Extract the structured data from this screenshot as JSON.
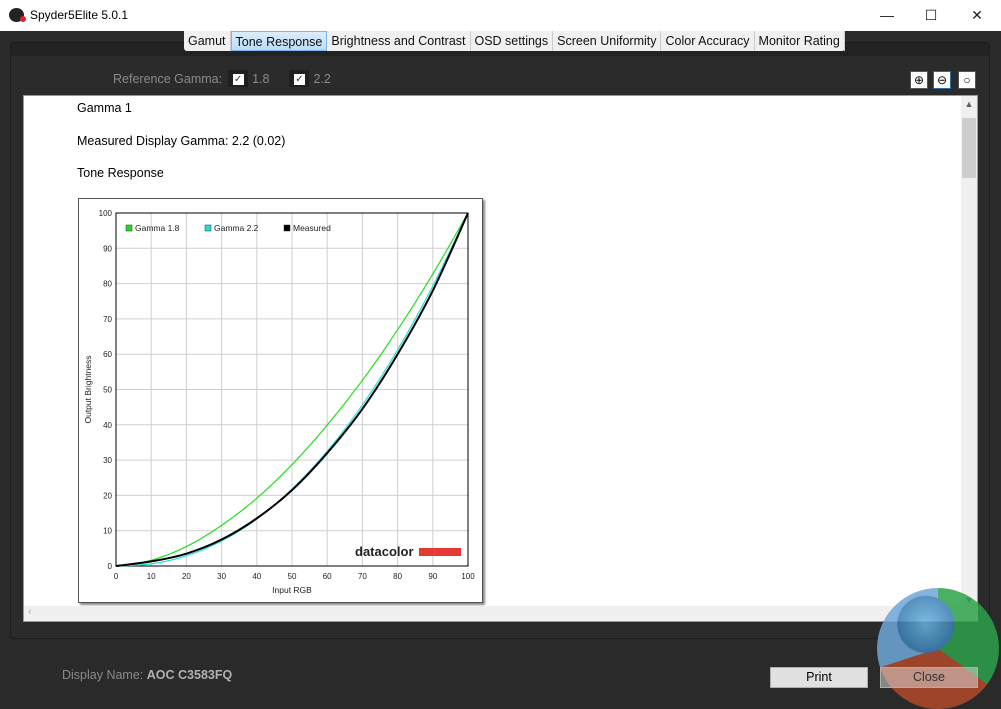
{
  "window": {
    "title": "Spyder5Elite 5.0.1",
    "logo": "S",
    "minimize": "—",
    "maximize": "☐",
    "close": "✕"
  },
  "tabs": [
    {
      "label": "Gamut"
    },
    {
      "label": "Tone Response",
      "active": true
    },
    {
      "label": "Brightness and Contrast"
    },
    {
      "label": "OSD settings"
    },
    {
      "label": "Screen Uniformity"
    },
    {
      "label": "Color Accuracy"
    },
    {
      "label": "Monitor Rating"
    }
  ],
  "reference": {
    "label": "Reference Gamma:",
    "options": [
      {
        "value": "1.8",
        "checked": true
      },
      {
        "value": "2.2",
        "checked": true
      }
    ]
  },
  "zoom_icons": [
    "zoom-in-icon",
    "zoom-out-icon",
    "zoom-reset-icon"
  ],
  "report": {
    "heading": "Gamma 1",
    "measured": "Measured Display Gamma: 2.2 (0.02)",
    "section": "Tone Response"
  },
  "chart_data": {
    "type": "line",
    "title": "",
    "xlabel": "Input RGB",
    "ylabel": "Output Brightness",
    "xlim": [
      0,
      100
    ],
    "ylim": [
      0,
      100
    ],
    "grid": true,
    "legend_position": "top-left",
    "x": [
      0,
      10,
      20,
      30,
      40,
      50,
      60,
      70,
      80,
      90,
      100
    ],
    "xticks": [
      "0",
      "10",
      "20",
      "30",
      "40",
      "50",
      "60",
      "70",
      "80",
      "90",
      "100"
    ],
    "yticks": [
      "0",
      "10",
      "20",
      "30",
      "40",
      "50",
      "60",
      "70",
      "80",
      "90",
      "100"
    ],
    "series": [
      {
        "name": "Gamma 1.8",
        "color": "#22dd22",
        "values": [
          0,
          1.6,
          5.5,
          11.5,
          19.2,
          28.7,
          39.9,
          52.6,
          66.9,
          82.7,
          100
        ]
      },
      {
        "name": "Gamma 2.2",
        "color": "#22dddd",
        "values": [
          0,
          0.6,
          2.9,
          7.1,
          13.3,
          21.8,
          32.5,
          45.6,
          61.2,
          79.3,
          100
        ]
      },
      {
        "name": "Measured",
        "color": "#000000",
        "values": [
          0,
          1.3,
          3.5,
          7.5,
          13.5,
          21.5,
          32,
          44.5,
          60,
          78,
          100
        ]
      }
    ],
    "watermark": "datacolor"
  },
  "footer": {
    "display_label": "Display Name:",
    "display_value": "AOC C3583FQ",
    "print": "Print",
    "close": "Close"
  },
  "watermark_logo": "KG"
}
